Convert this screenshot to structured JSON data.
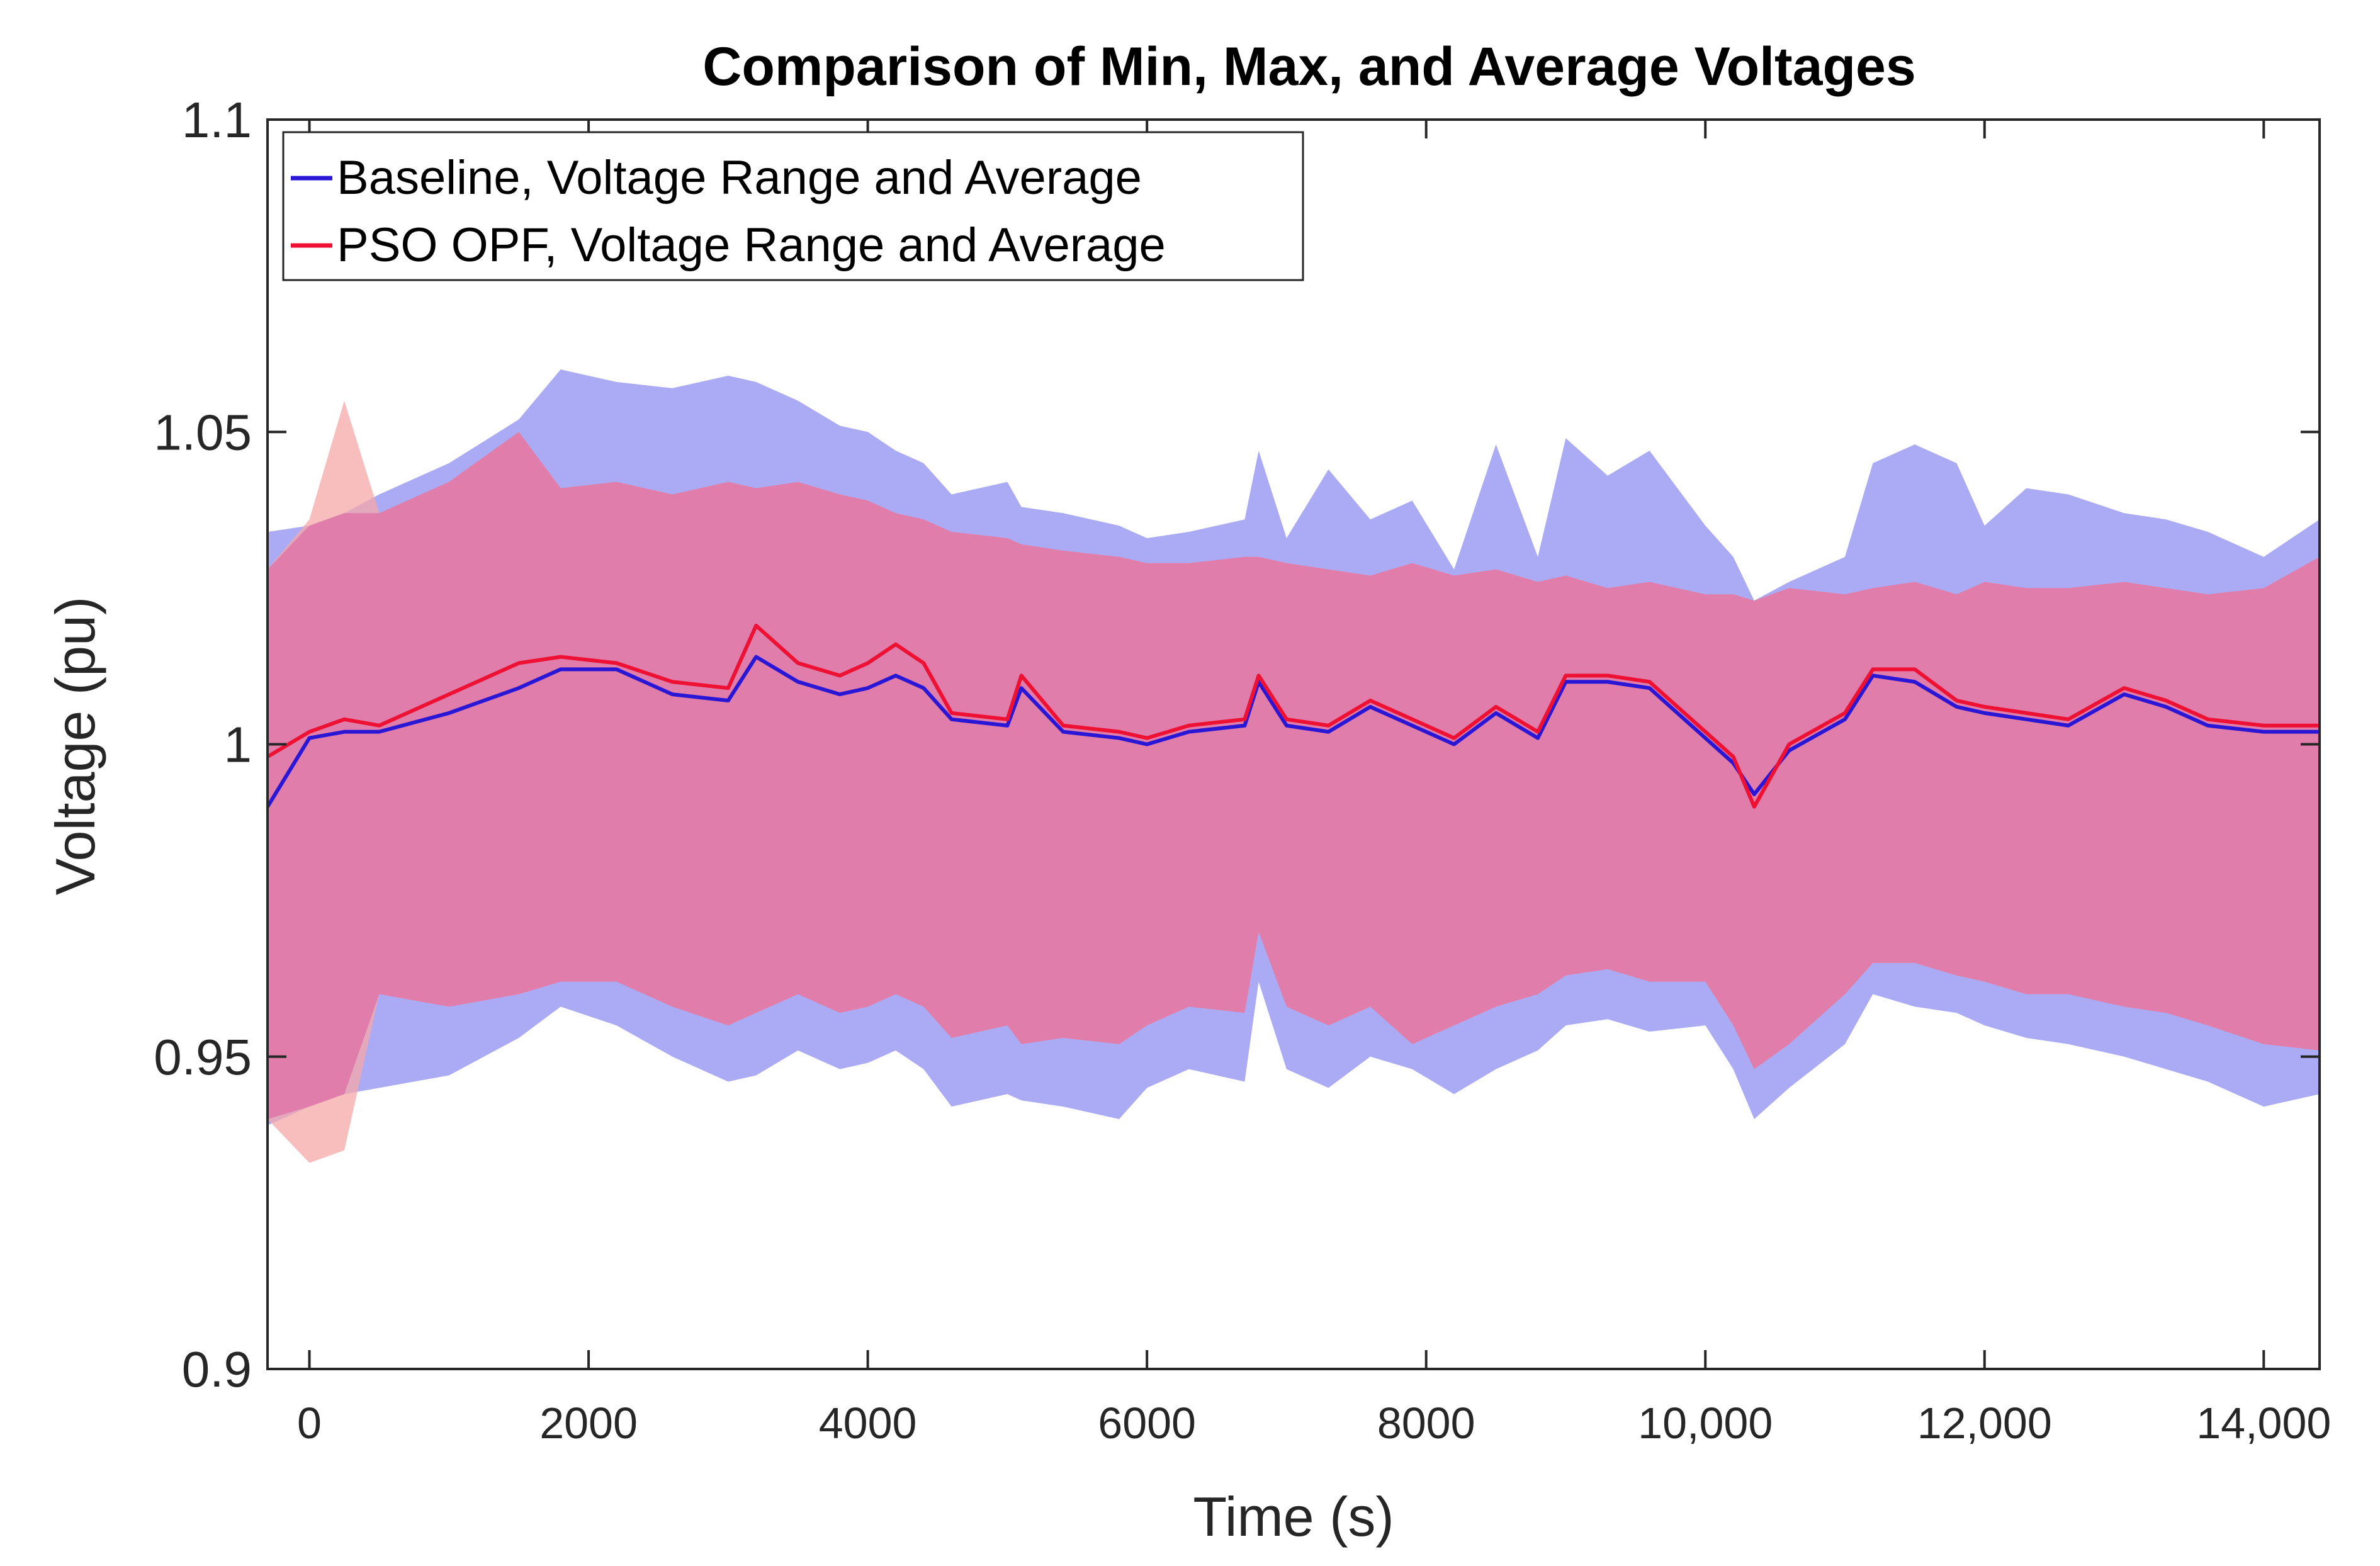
{
  "chart_data": {
    "type": "area",
    "title": "Comparison of Min, Max, and Average Voltages",
    "xlabel": "Time (s)",
    "ylabel": "Voltage (pu)",
    "xlim": [
      -300,
      14400
    ],
    "ylim": [
      0.9,
      1.1
    ],
    "xticks": [
      0,
      2000,
      4000,
      6000,
      8000,
      10000,
      12000,
      14000
    ],
    "xtick_labels": [
      "0",
      "2000",
      "4000",
      "6000",
      "8000",
      "10,000",
      "12,000",
      "14,000"
    ],
    "yticks": [
      0.9,
      0.95,
      1.0,
      1.05,
      1.1
    ],
    "ytick_labels": [
      "0.9",
      "0.95",
      "1",
      "1.05",
      "1.1"
    ],
    "legend": {
      "position": "top-left",
      "entries": [
        "Baseline, Voltage Range and Average",
        "PSO OPF, Voltage Range and Average"
      ]
    },
    "colors": {
      "baseline_line": "#2a17d6",
      "baseline_band": "#aaaaf5",
      "pso_line": "#ee1133",
      "pso_band": "#f5a7a7",
      "overlap_band": "#e07daa"
    },
    "series": [
      {
        "name": "Baseline",
        "x": [
          -300,
          0,
          250,
          500,
          1000,
          1500,
          1800,
          2200,
          2600,
          3000,
          3200,
          3500,
          3800,
          4000,
          4200,
          4400,
          4600,
          5000,
          5100,
          5400,
          5800,
          6000,
          6300,
          6700,
          6800,
          7000,
          7300,
          7600,
          7900,
          8200,
          8500,
          8800,
          9000,
          9300,
          9600,
          10000,
          10200,
          10350,
          10600,
          11000,
          11200,
          11500,
          11800,
          12000,
          12300,
          12600,
          13000,
          13300,
          13600,
          14000,
          14400
        ],
        "avg": [
          0.99,
          1.001,
          1.002,
          1.002,
          1.005,
          1.009,
          1.012,
          1.012,
          1.008,
          1.007,
          1.014,
          1.01,
          1.008,
          1.009,
          1.011,
          1.009,
          1.004,
          1.003,
          1.009,
          1.002,
          1.001,
          1.0,
          1.002,
          1.003,
          1.01,
          1.003,
          1.002,
          1.006,
          1.003,
          1.0,
          1.005,
          1.001,
          1.01,
          1.01,
          1.009,
          1.001,
          0.997,
          0.992,
          0.999,
          1.004,
          1.011,
          1.01,
          1.006,
          1.005,
          1.004,
          1.003,
          1.008,
          1.006,
          1.003,
          1.002,
          1.002
        ],
        "max": [
          1.034,
          1.035,
          1.037,
          1.04,
          1.045,
          1.052,
          1.06,
          1.058,
          1.057,
          1.059,
          1.058,
          1.055,
          1.051,
          1.05,
          1.047,
          1.045,
          1.04,
          1.042,
          1.038,
          1.037,
          1.035,
          1.033,
          1.034,
          1.036,
          1.047,
          1.033,
          1.044,
          1.036,
          1.039,
          1.028,
          1.048,
          1.03,
          1.049,
          1.043,
          1.047,
          1.035,
          1.03,
          1.023,
          1.026,
          1.03,
          1.045,
          1.048,
          1.045,
          1.035,
          1.041,
          1.04,
          1.037,
          1.036,
          1.034,
          1.03,
          1.036
        ],
        "min": [
          0.939,
          0.942,
          0.944,
          0.945,
          0.947,
          0.953,
          0.958,
          0.955,
          0.95,
          0.946,
          0.947,
          0.951,
          0.948,
          0.949,
          0.951,
          0.948,
          0.942,
          0.944,
          0.943,
          0.942,
          0.94,
          0.945,
          0.948,
          0.946,
          0.962,
          0.948,
          0.945,
          0.95,
          0.948,
          0.944,
          0.948,
          0.951,
          0.955,
          0.956,
          0.954,
          0.955,
          0.948,
          0.94,
          0.945,
          0.952,
          0.96,
          0.958,
          0.957,
          0.955,
          0.953,
          0.952,
          0.95,
          0.948,
          0.946,
          0.942,
          0.944
        ]
      },
      {
        "name": "PSO OPF",
        "x": [
          -300,
          0,
          250,
          500,
          1000,
          1500,
          1800,
          2200,
          2600,
          3000,
          3200,
          3500,
          3800,
          4000,
          4200,
          4400,
          4600,
          5000,
          5100,
          5400,
          5800,
          6000,
          6300,
          6700,
          6800,
          7000,
          7300,
          7600,
          7900,
          8200,
          8500,
          8800,
          9000,
          9300,
          9600,
          10000,
          10200,
          10350,
          10600,
          11000,
          11200,
          11500,
          11800,
          12000,
          12300,
          12600,
          13000,
          13300,
          13600,
          14000,
          14400
        ],
        "avg": [
          0.998,
          1.002,
          1.004,
          1.003,
          1.008,
          1.013,
          1.014,
          1.013,
          1.01,
          1.009,
          1.019,
          1.013,
          1.011,
          1.013,
          1.016,
          1.013,
          1.005,
          1.004,
          1.011,
          1.003,
          1.002,
          1.001,
          1.003,
          1.004,
          1.011,
          1.004,
          1.003,
          1.007,
          1.004,
          1.001,
          1.006,
          1.002,
          1.011,
          1.011,
          1.01,
          1.002,
          0.998,
          0.99,
          1.0,
          1.005,
          1.012,
          1.012,
          1.007,
          1.006,
          1.005,
          1.004,
          1.009,
          1.007,
          1.004,
          1.003,
          1.003
        ],
        "max": [
          1.028,
          1.036,
          1.055,
          1.037,
          1.042,
          1.05,
          1.041,
          1.042,
          1.04,
          1.042,
          1.041,
          1.042,
          1.04,
          1.039,
          1.037,
          1.036,
          1.034,
          1.033,
          1.032,
          1.031,
          1.03,
          1.029,
          1.029,
          1.03,
          1.03,
          1.029,
          1.028,
          1.027,
          1.029,
          1.027,
          1.028,
          1.026,
          1.027,
          1.025,
          1.026,
          1.024,
          1.024,
          1.023,
          1.025,
          1.024,
          1.025,
          1.026,
          1.024,
          1.026,
          1.025,
          1.025,
          1.026,
          1.025,
          1.024,
          1.025,
          1.03
        ],
        "min": [
          0.94,
          0.933,
          0.935,
          0.96,
          0.958,
          0.96,
          0.962,
          0.962,
          0.958,
          0.955,
          0.957,
          0.96,
          0.957,
          0.958,
          0.96,
          0.958,
          0.953,
          0.955,
          0.952,
          0.953,
          0.952,
          0.955,
          0.958,
          0.957,
          0.97,
          0.958,
          0.955,
          0.958,
          0.952,
          0.955,
          0.958,
          0.96,
          0.963,
          0.964,
          0.962,
          0.962,
          0.955,
          0.948,
          0.952,
          0.96,
          0.965,
          0.965,
          0.963,
          0.962,
          0.96,
          0.96,
          0.958,
          0.957,
          0.955,
          0.952,
          0.951
        ]
      }
    ]
  }
}
